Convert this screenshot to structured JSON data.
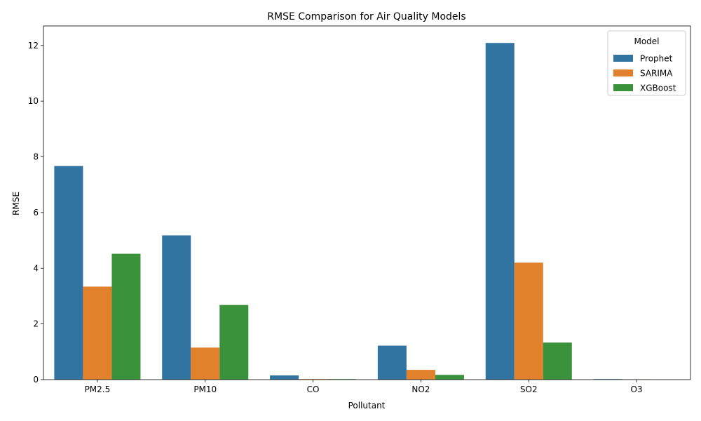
{
  "chart_data": {
    "type": "bar",
    "title": "RMSE Comparison for Air Quality Models",
    "xlabel": "Pollutant",
    "ylabel": "RMSE",
    "categories": [
      "PM2.5",
      "PM10",
      "CO",
      "NO2",
      "SO2",
      "O3"
    ],
    "series": [
      {
        "name": "Prophet",
        "color": "#3274a1",
        "values": [
          7.67,
          5.18,
          0.15,
          1.22,
          12.09,
          0.02
        ]
      },
      {
        "name": "SARIMA",
        "color": "#e1812c",
        "values": [
          3.34,
          1.15,
          0.02,
          0.35,
          4.2,
          0.01
        ]
      },
      {
        "name": "XGBoost",
        "color": "#3a923a",
        "values": [
          4.52,
          2.68,
          0.02,
          0.17,
          1.33,
          0.0
        ]
      }
    ],
    "ylim": [
      0,
      12.7
    ],
    "yticks": [
      0,
      2,
      4,
      6,
      8,
      10,
      12
    ],
    "grid": false,
    "legend": {
      "title": "Model",
      "placement": "top-right"
    }
  }
}
